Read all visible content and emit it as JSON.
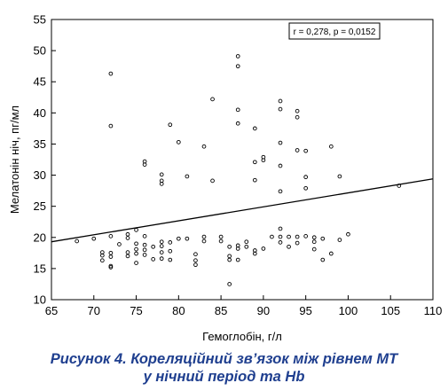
{
  "chart_data": {
    "type": "scatter",
    "title": "",
    "xlabel": "Гемоглобін, г/л",
    "ylabel": "Мелатонін ніч, пг/мл",
    "xlim": [
      65,
      110
    ],
    "ylim": [
      10,
      55
    ],
    "xticks": [
      65,
      70,
      75,
      80,
      85,
      90,
      95,
      100,
      105,
      110
    ],
    "yticks": [
      10,
      15,
      20,
      25,
      30,
      35,
      40,
      45,
      50,
      55
    ],
    "grid": false,
    "annotation": "r = 0,278, p = 0,0152",
    "regression_line": {
      "x": [
        65,
        110
      ],
      "y": [
        19.3,
        29.4
      ]
    },
    "points": [
      [
        68,
        19.4
      ],
      [
        70,
        19.8
      ],
      [
        71,
        17.6
      ],
      [
        71,
        17.1
      ],
      [
        71,
        16.3
      ],
      [
        72,
        46.3
      ],
      [
        72,
        37.9
      ],
      [
        72,
        20.2
      ],
      [
        72,
        17.5
      ],
      [
        72,
        16.9
      ],
      [
        72,
        15.4
      ],
      [
        72,
        15.2
      ],
      [
        73,
        18.9
      ],
      [
        74,
        20.5
      ],
      [
        74,
        19.9
      ],
      [
        74,
        17.6
      ],
      [
        74,
        17.0
      ],
      [
        75,
        21.2
      ],
      [
        75,
        19.0
      ],
      [
        75,
        18.1
      ],
      [
        75,
        17.4
      ],
      [
        75,
        15.9
      ],
      [
        76,
        32.2
      ],
      [
        76,
        31.7
      ],
      [
        76,
        20.2
      ],
      [
        76,
        18.8
      ],
      [
        76,
        18.0
      ],
      [
        76,
        17.2
      ],
      [
        77,
        18.5
      ],
      [
        77,
        16.5
      ],
      [
        78,
        30.1
      ],
      [
        78,
        29.1
      ],
      [
        78,
        28.6
      ],
      [
        78,
        19.3
      ],
      [
        78,
        18.6
      ],
      [
        78,
        17.6
      ],
      [
        78,
        16.6
      ],
      [
        79,
        38.1
      ],
      [
        79,
        19.2
      ],
      [
        79,
        17.8
      ],
      [
        79,
        16.4
      ],
      [
        80,
        35.3
      ],
      [
        80,
        19.8
      ],
      [
        81,
        29.8
      ],
      [
        81,
        19.8
      ],
      [
        82,
        17.3
      ],
      [
        82,
        16.3
      ],
      [
        82,
        15.6
      ],
      [
        83,
        34.6
      ],
      [
        83,
        20.1
      ],
      [
        83,
        19.4
      ],
      [
        84,
        42.2
      ],
      [
        84,
        29.1
      ],
      [
        85,
        20.1
      ],
      [
        85,
        19.4
      ],
      [
        86,
        18.5
      ],
      [
        86,
        17.0
      ],
      [
        86,
        16.4
      ],
      [
        86,
        12.5
      ],
      [
        87,
        49.1
      ],
      [
        87,
        47.5
      ],
      [
        87,
        40.5
      ],
      [
        87,
        38.3
      ],
      [
        87,
        18.7
      ],
      [
        87,
        18.2
      ],
      [
        87,
        16.4
      ],
      [
        88,
        19.3
      ],
      [
        88,
        18.5
      ],
      [
        89,
        37.5
      ],
      [
        89,
        32.1
      ],
      [
        89,
        29.2
      ],
      [
        89,
        17.9
      ],
      [
        89,
        17.4
      ],
      [
        90,
        32.9
      ],
      [
        90,
        32.4
      ],
      [
        90,
        18.2
      ],
      [
        91,
        20.1
      ],
      [
        92,
        41.9
      ],
      [
        92,
        40.6
      ],
      [
        92,
        35.2
      ],
      [
        92,
        31.5
      ],
      [
        92,
        27.4
      ],
      [
        92,
        21.4
      ],
      [
        92,
        20.1
      ],
      [
        92,
        19.2
      ],
      [
        93,
        20.1
      ],
      [
        93,
        18.5
      ],
      [
        94,
        40.3
      ],
      [
        94,
        39.3
      ],
      [
        94,
        34.0
      ],
      [
        94,
        20.1
      ],
      [
        94,
        19.1
      ],
      [
        95,
        33.9
      ],
      [
        95,
        29.7
      ],
      [
        95,
        27.9
      ],
      [
        95,
        20.2
      ],
      [
        96,
        20.0
      ],
      [
        96,
        19.3
      ],
      [
        96,
        18.1
      ],
      [
        97,
        19.8
      ],
      [
        97,
        16.4
      ],
      [
        98,
        34.6
      ],
      [
        98,
        17.4
      ],
      [
        99,
        29.8
      ],
      [
        99,
        19.6
      ],
      [
        100,
        20.5
      ],
      [
        106,
        28.3
      ]
    ]
  },
  "caption": {
    "line1": "Рисунок 4. Кореляційний зв’язок між рівнем МТ",
    "line2": "у нічний період та Hb"
  }
}
